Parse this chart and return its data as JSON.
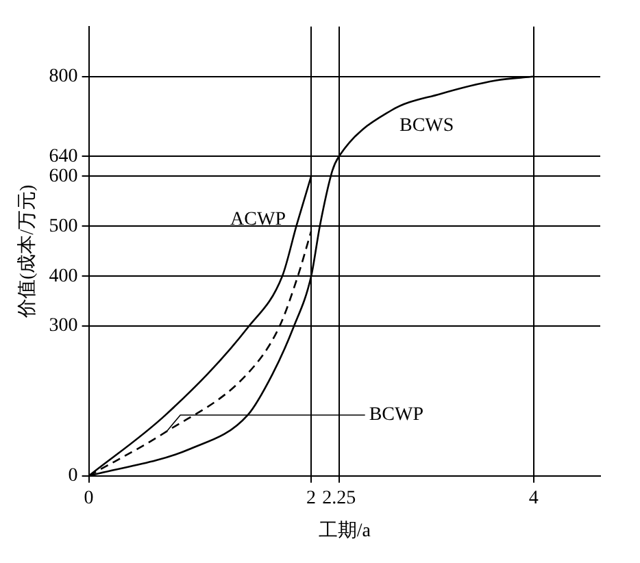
{
  "chart_data": {
    "type": "line",
    "xlabel": "工期/a",
    "ylabel": "价值(成本/万元)",
    "xlim": [
      0,
      4.6
    ],
    "xticks": [
      0,
      2,
      2.25,
      4
    ],
    "ylim": [
      0,
      900
    ],
    "yticks": [
      0,
      300,
      400,
      500,
      600,
      640,
      800
    ],
    "grid": true,
    "legend": false,
    "marker": "none",
    "series": [
      {
        "name": "ACWP",
        "color": "#000000",
        "line_style": "solid",
        "x": [
          0,
          0.7,
          1.43,
          1.74,
          1.87,
          2
        ],
        "values": [
          0,
          124,
          297,
          400,
          503,
          600
        ]
      },
      {
        "name": "BCWP",
        "color": "#000000",
        "line_style": "dashed",
        "x": [
          0,
          0.7,
          1.42,
          1.71,
          1.88,
          2
        ],
        "values": [
          0,
          89,
          203,
          297,
          400,
          490
        ]
      },
      {
        "name": "BCWS",
        "color": "#000000",
        "line_style": "solid",
        "x": [
          0,
          0.91,
          1.43,
          1.65,
          1.84,
          2,
          2.08,
          2.19,
          2.25,
          2.72,
          3.16,
          3.66,
          4
        ],
        "values": [
          0,
          54,
          122,
          203,
          297,
          400,
          503,
          611,
          640,
          732,
          765,
          792,
          800
        ]
      }
    ]
  }
}
